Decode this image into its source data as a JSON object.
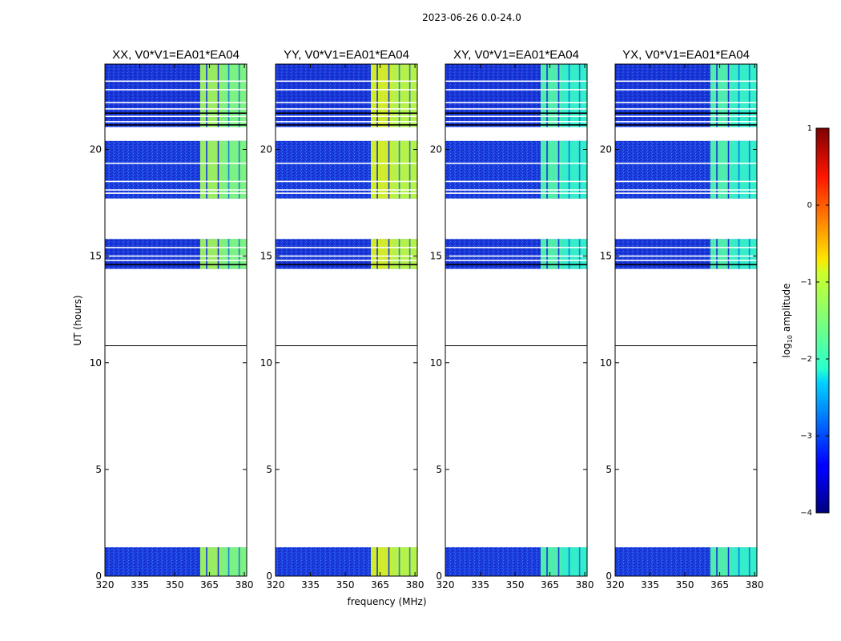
{
  "figure": {
    "suptitle": "2023-06-26 0.0-24.0",
    "xlabel": "frequency (MHz)",
    "ylabel": "UT (hours)",
    "colorbar_label_prefix": "log",
    "colorbar_label_sub": "10",
    "colorbar_label_suffix": " amplitude"
  },
  "chart_data": {
    "type": "heatmap",
    "title": "2023-06-26 0.0-24.0",
    "xlabel": "frequency (MHz)",
    "ylabel": "UT (hours)",
    "xlim": [
      320,
      381
    ],
    "ylim": [
      0,
      24
    ],
    "xticks": [
      320,
      335,
      350,
      365,
      380
    ],
    "yticks": [
      0,
      5,
      10,
      15,
      20
    ],
    "colorbar": {
      "label": "log10 amplitude",
      "range": [
        -4,
        1
      ],
      "ticks": [
        -4,
        -3,
        -2,
        -1,
        0,
        1
      ],
      "colormap": "jet"
    },
    "data_time_ranges_hours": [
      [
        0,
        1.35
      ],
      [
        14.4,
        15.8
      ],
      [
        17.7,
        20.4
      ],
      [
        21.05,
        24
      ]
    ],
    "flagged_time_ranges_hours": [
      [
        1.35,
        14.4
      ],
      [
        15.8,
        17.7
      ],
      [
        20.4,
        21.05
      ]
    ],
    "bright_band_mhz": [
      361,
      381
    ],
    "panels": [
      {
        "title": "XX, V0*V1=EA01*EA04",
        "polarization": "XX",
        "background_log_amp": -3.2,
        "band_log_amp": -1.3
      },
      {
        "title": "YY, V0*V1=EA01*EA04",
        "polarization": "YY",
        "background_log_amp": -3.2,
        "band_log_amp": -1.0
      },
      {
        "title": "XY, V0*V1=EA01*EA04",
        "polarization": "XY",
        "background_log_amp": -3.3,
        "band_log_amp": -1.7
      },
      {
        "title": "YX, V0*V1=EA01*EA04",
        "polarization": "YX",
        "background_log_amp": -3.3,
        "band_log_amp": -1.7
      }
    ]
  }
}
